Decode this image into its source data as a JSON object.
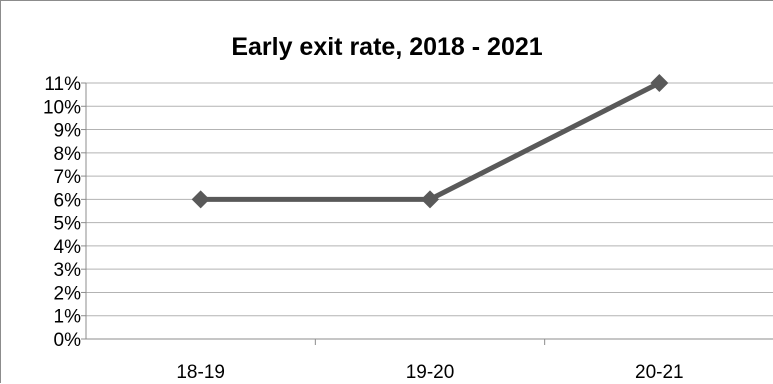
{
  "chart_data": {
    "type": "line",
    "title": "Early exit rate, 2018 - 2021",
    "xlabel": "",
    "ylabel": "",
    "categories": [
      "18-19",
      "19-20",
      "20-21"
    ],
    "series": [
      {
        "values": [
          6,
          6,
          11
        ]
      }
    ],
    "ylim": [
      0,
      11
    ],
    "y_ticks": [
      "0%",
      "1%",
      "2%",
      "3%",
      "4%",
      "5%",
      "6%",
      "7%",
      "8%",
      "9%",
      "10%",
      "11%"
    ],
    "grid": true,
    "legend": "none",
    "colors": {
      "line": "#595959",
      "marker": "#595959",
      "grid": "#b3b3b3",
      "axis": "#8c8c8c"
    }
  }
}
